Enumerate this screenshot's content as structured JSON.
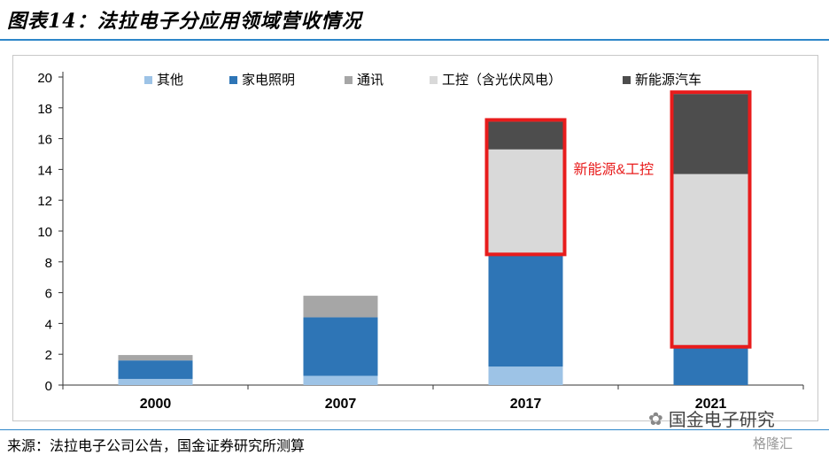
{
  "header": {
    "title": "图表14：法拉电子分应用领域营收情况"
  },
  "footer": {
    "source": "来源：法拉电子公司公告，国金证券研究所测算"
  },
  "watermark": {
    "name": "国金电子研究",
    "logo_text": "格隆汇"
  },
  "chart_data": {
    "type": "bar",
    "stacked": true,
    "categories": [
      "2000",
      "2007",
      "2017",
      "2021"
    ],
    "series": [
      {
        "name": "其他",
        "color": "#9dc3e6",
        "values": [
          0.4,
          0.6,
          1.2,
          0.0
        ]
      },
      {
        "name": "家电照明",
        "color": "#2e75b6",
        "values": [
          1.2,
          3.8,
          7.4,
          2.6
        ]
      },
      {
        "name": "通讯",
        "color": "#a6a6a6",
        "values": [
          0.35,
          1.4,
          0.0,
          0.0
        ]
      },
      {
        "name": "工控（含光伏风电）",
        "color": "#d9d9d9",
        "values": [
          0.0,
          0.0,
          6.7,
          11.1
        ]
      },
      {
        "name": "新能源汽车",
        "color": "#4d4d4d",
        "values": [
          0.0,
          0.0,
          1.8,
          5.2
        ]
      }
    ],
    "ylim": [
      0,
      20
    ],
    "yticks": [
      "0",
      "2",
      "4",
      "6",
      "8",
      "10",
      "12",
      "14",
      "16",
      "18",
      "20"
    ],
    "legend_position": "top",
    "grid": false,
    "annotation": {
      "text": "新能源&工控",
      "color": "#e81c1c",
      "highlight_color": "#e81c1c",
      "highlighted_categories": [
        "2017",
        "2021"
      ]
    }
  }
}
